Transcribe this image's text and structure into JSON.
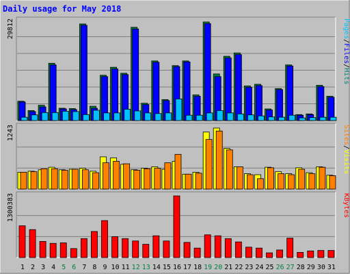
{
  "chart_data": {
    "type": "bar",
    "title": "Daily usage for May 2018",
    "categories": [
      "1",
      "2",
      "3",
      "4",
      "5",
      "6",
      "7",
      "8",
      "9",
      "10",
      "11",
      "12",
      "13",
      "14",
      "15",
      "16",
      "17",
      "18",
      "19",
      "20",
      "21",
      "22",
      "23",
      "24",
      "25",
      "26",
      "27",
      "28",
      "29",
      "30",
      "31"
    ],
    "weekend_days": [
      "5",
      "6",
      "12",
      "13",
      "19",
      "20",
      "26",
      "27"
    ],
    "panels": [
      {
        "id": "pages-files-hits",
        "ymax": 29812,
        "ymax_label": "29812",
        "legend_parts": [
          {
            "text": "Pages",
            "color": "#00c0ff"
          },
          {
            "text": "/",
            "color": "#000000"
          },
          {
            "text": "Files",
            "color": "#0000ff"
          },
          {
            "text": "/",
            "color": "#000000"
          },
          {
            "text": "Hits",
            "color": "#008080"
          }
        ],
        "series": [
          {
            "name": "Hits",
            "color": "#008040",
            "offset": 0,
            "values": [
              5800,
              3000,
              4600,
              17200,
              3700,
              3600,
              29000,
              4300,
              13600,
              16000,
              14200,
              28000,
              5200,
              17900,
              6300,
              16500,
              17900,
              7700,
              29600,
              14000,
              19300,
              20300,
              10400,
              10900,
              3500,
              9600,
              16700,
              1800,
              2000,
              10600,
              7300
            ]
          },
          {
            "name": "Files",
            "color": "#0000ff",
            "offset": 2,
            "values": [
              5600,
              2700,
              4100,
              16700,
              3500,
              3300,
              28600,
              3700,
              13200,
              15500,
              13800,
              27500,
              4800,
              17500,
              6000,
              16200,
              17600,
              7300,
              29100,
              13200,
              18800,
              19800,
              10000,
              10500,
              3200,
              9300,
              16400,
              1600,
              1800,
              10200,
              7000
            ]
          },
          {
            "name": "Pages",
            "color": "#00c0ff",
            "offset": 5,
            "values": [
              1000,
              1700,
              2400,
              2400,
              2800,
              2700,
              1800,
              3100,
              2300,
              2300,
              3400,
              2900,
              2300,
              2100,
              2300,
              6500,
              1600,
              1600,
              2300,
              3000,
              2300,
              2000,
              1700,
              1400,
              1100,
              1000,
              1600,
              800,
              900,
              1000,
              1000
            ]
          }
        ]
      },
      {
        "id": "sites-visits",
        "ymax": 1243,
        "ymax_label": "1243",
        "legend_parts": [
          {
            "text": "Sites",
            "color": "#ff8000"
          },
          {
            "text": "/",
            "color": "#000000"
          },
          {
            "text": "Visits",
            "color": "#ffff00"
          }
        ],
        "series": [
          {
            "name": "Visits",
            "color": "#ffff00",
            "offset": 0,
            "values": [
              340,
              360,
              390,
              440,
              390,
              400,
              420,
              360,
              650,
              630,
              500,
              390,
              420,
              450,
              400,
              560,
              300,
              340,
              1150,
              1230,
              820,
              450,
              310,
              290,
              440,
              350,
              310,
              430,
              330,
              450,
              280
            ]
          },
          {
            "name": "Sites",
            "color": "#ff8000",
            "offset": 4,
            "values": [
              340,
              350,
              410,
              410,
              380,
              400,
              390,
              330,
              530,
              560,
              510,
              380,
              410,
              420,
              530,
              700,
              300,
              320,
              1000,
              1170,
              790,
              450,
              290,
              210,
              430,
              310,
              290,
              400,
              310,
              440,
              270
            ]
          }
        ]
      },
      {
        "id": "kbytes",
        "ymax": 1300383,
        "ymax_label": "1300383",
        "legend_parts": [
          {
            "text": "KBytes",
            "color": "#ff0000"
          }
        ],
        "series": [
          {
            "name": "KBytes",
            "color": "#ff0000",
            "offset": 2,
            "values": [
              670000,
              590000,
              340000,
              300000,
              310000,
              190000,
              400000,
              550000,
              780000,
              440000,
              400000,
              350000,
              280000,
              460000,
              350000,
              1300383,
              320000,
              200000,
              480000,
              460000,
              400000,
              330000,
              220000,
              200000,
              100000,
              160000,
              410000,
              110000,
              140000,
              150000,
              150000
            ]
          }
        ]
      }
    ]
  }
}
